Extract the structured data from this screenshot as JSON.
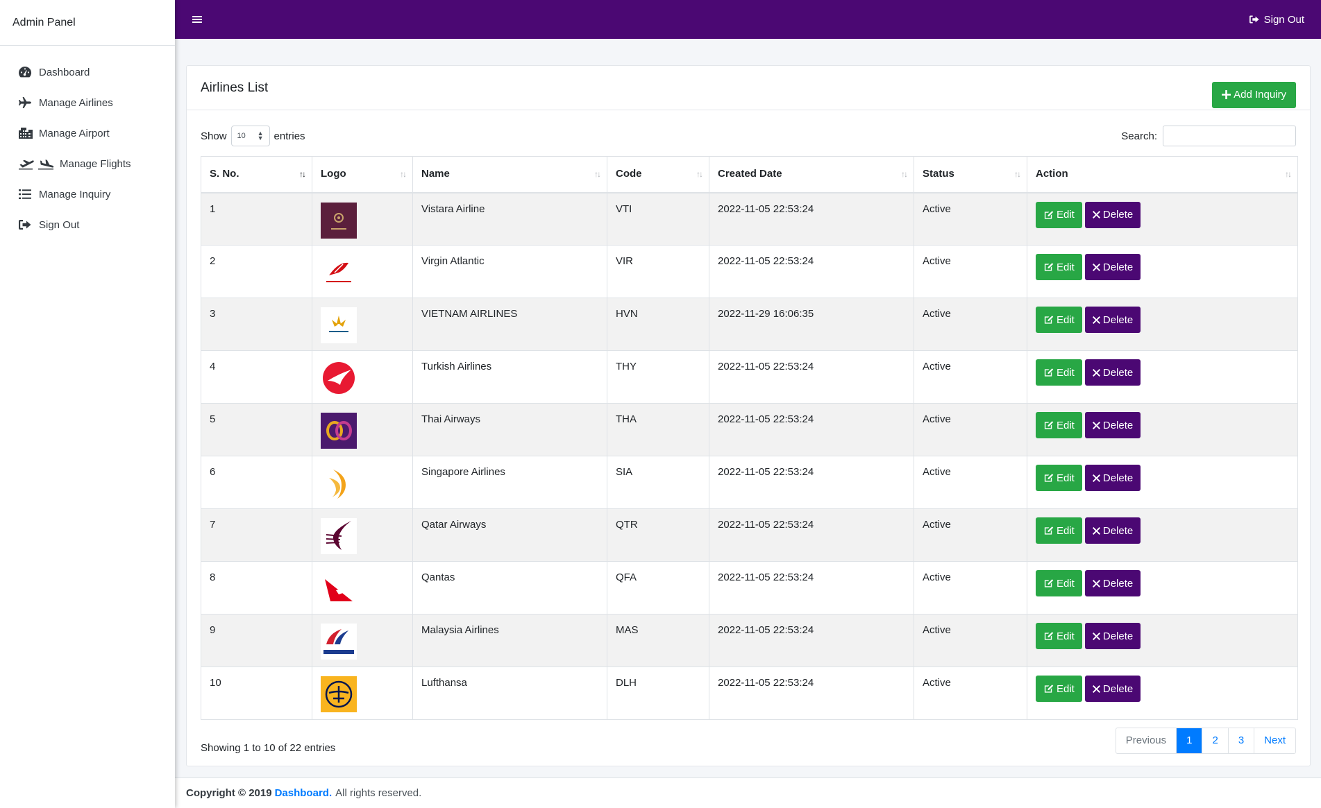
{
  "app": {
    "brand": "Admin Panel"
  },
  "sidebar": {
    "items": [
      {
        "label": "Dashboard",
        "icon": "tachometer-icon"
      },
      {
        "label": "Manage Airlines",
        "icon": "plane-icon"
      },
      {
        "label": "Manage Airport",
        "icon": "building-icon"
      },
      {
        "label": "Manage Flights",
        "icon": "plane-departure-arrival-icon"
      },
      {
        "label": "Manage Inquiry",
        "icon": "list-icon"
      },
      {
        "label": "Sign Out",
        "icon": "sign-out-icon"
      }
    ]
  },
  "topbar": {
    "signout_label": "Sign Out"
  },
  "card": {
    "title": "Airlines List",
    "add_label": "Add Inquiry"
  },
  "controls": {
    "show_label": "Show",
    "entries_label": "entries",
    "length_value": "10",
    "search_label": "Search:",
    "search_value": ""
  },
  "table": {
    "headers": [
      "S. No.",
      "Logo",
      "Name",
      "Code",
      "Created Date",
      "Status",
      "Action"
    ],
    "edit_label": "Edit",
    "delete_label": "Delete",
    "rows": [
      {
        "sno": "1",
        "logo": "vistara-logo",
        "name": "Vistara Airline",
        "code": "VTI",
        "created": "2022-11-05 22:53:24",
        "status": "Active"
      },
      {
        "sno": "2",
        "logo": "virgin-atlantic-logo",
        "name": "Virgin Atlantic",
        "code": "VIR",
        "created": "2022-11-05 22:53:24",
        "status": "Active"
      },
      {
        "sno": "3",
        "logo": "vietnam-airlines-logo",
        "name": "VIETNAM AIRLINES",
        "code": "HVN",
        "created": "2022-11-29 16:06:35",
        "status": "Active"
      },
      {
        "sno": "4",
        "logo": "turkish-airlines-logo",
        "name": "Turkish Airlines",
        "code": "THY",
        "created": "2022-11-05 22:53:24",
        "status": "Active"
      },
      {
        "sno": "5",
        "logo": "thai-airways-logo",
        "name": "Thai Airways",
        "code": "THA",
        "created": "2022-11-05 22:53:24",
        "status": "Active"
      },
      {
        "sno": "6",
        "logo": "singapore-airlines-logo",
        "name": "Singapore Airlines",
        "code": "SIA",
        "created": "2022-11-05 22:53:24",
        "status": "Active"
      },
      {
        "sno": "7",
        "logo": "qatar-airways-logo",
        "name": "Qatar Airways",
        "code": "QTR",
        "created": "2022-11-05 22:53:24",
        "status": "Active"
      },
      {
        "sno": "8",
        "logo": "qantas-logo",
        "name": "Qantas",
        "code": "QFA",
        "created": "2022-11-05 22:53:24",
        "status": "Active"
      },
      {
        "sno": "9",
        "logo": "malaysia-airlines-logo",
        "name": "Malaysia Airlines",
        "code": "MAS",
        "created": "2022-11-05 22:53:24",
        "status": "Active"
      },
      {
        "sno": "10",
        "logo": "lufthansa-logo",
        "name": "Lufthansa",
        "code": "DLH",
        "created": "2022-11-05 22:53:24",
        "status": "Active"
      }
    ]
  },
  "footer": {
    "info": "Showing 1 to 10 of 22 entries",
    "pagination": [
      "Previous",
      "1",
      "2",
      "3",
      "Next"
    ],
    "active_page": "1"
  },
  "page_footer": {
    "copyright": "Copyright © 2019",
    "link": "Dashboard.",
    "rights": "All rights reserved."
  },
  "colors": {
    "topbar": "#4b0873",
    "edit_button": "#28a745",
    "delete_button": "#4b0873",
    "link": "#007bff"
  }
}
